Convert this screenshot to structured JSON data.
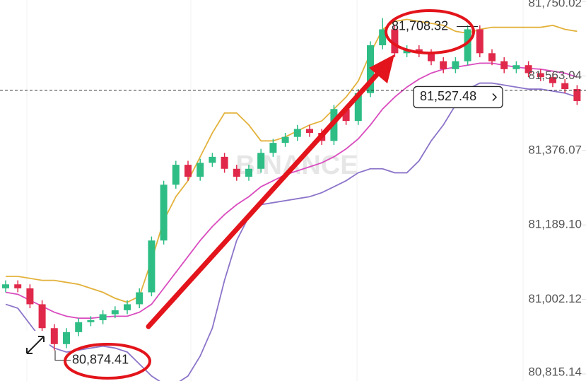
{
  "chart_data": {
    "type": "candlestick",
    "watermark": "BINANCE",
    "ylim": [
      80797.4,
      81753.6
    ],
    "yticks": [
      {
        "value": 80815.14,
        "label": "80,815.14"
      },
      {
        "value": 81002.12,
        "label": "81,002.12"
      },
      {
        "value": 81189.1,
        "label": "81,189.10"
      },
      {
        "value": 81376.07,
        "label": "81,376.07"
      },
      {
        "value": 81563.04,
        "label": "81,563.04"
      },
      {
        "value": 81750.02,
        "label": "81,750.02"
      }
    ],
    "up_color": "#2ebd85",
    "down_color": "#e0294a",
    "open": [
      81030,
      81040,
      81030,
      80990,
      80930,
      80890,
      80920,
      80945,
      80950,
      80965,
      80975,
      80990,
      81020,
      81150,
      81290,
      81340,
      81310,
      81345,
      81360,
      81330,
      81310,
      81330,
      81370,
      81395,
      81410,
      81430,
      81420,
      81400,
      81480,
      81450,
      81520,
      81640,
      81680,
      81620,
      81630,
      81620,
      81600,
      81580,
      81600,
      81680,
      81620,
      81600,
      81580,
      81590,
      81570,
      81560,
      81545,
      81530
    ],
    "high": [
      81050,
      81050,
      81040,
      81000,
      80940,
      80930,
      80955,
      80960,
      80975,
      80985,
      81000,
      81030,
      81160,
      81300,
      81350,
      81350,
      81355,
      81370,
      81370,
      81340,
      81340,
      81380,
      81405,
      81420,
      81440,
      81440,
      81430,
      81490,
      81490,
      81530,
      81650,
      81708.32,
      81690,
      81640,
      81640,
      81630,
      81610,
      81610,
      81690,
      81690,
      81630,
      81610,
      81600,
      81600,
      81580,
      81570,
      81555,
      81540
    ],
    "low": [
      81020,
      81020,
      80980,
      80920,
      80874.41,
      80880,
      80910,
      80935,
      80940,
      80955,
      80965,
      80980,
      81010,
      81140,
      81280,
      81300,
      81300,
      81335,
      81320,
      81300,
      81300,
      81320,
      81360,
      81385,
      81400,
      81410,
      81390,
      81390,
      81440,
      81440,
      81510,
      81630,
      81610,
      81610,
      81610,
      81590,
      81570,
      81570,
      81590,
      81610,
      81590,
      81570,
      81570,
      81560,
      81550,
      81535,
      81520,
      81490
    ],
    "close": [
      81040,
      81030,
      80990,
      80930,
      80890,
      80920,
      80945,
      80950,
      80965,
      80975,
      80990,
      81020,
      81150,
      81290,
      81340,
      81310,
      81345,
      81360,
      81330,
      81310,
      81330,
      81370,
      81395,
      81410,
      81430,
      81420,
      81400,
      81480,
      81450,
      81520,
      81640,
      81680,
      81620,
      81630,
      81620,
      81600,
      81580,
      81600,
      81680,
      81620,
      81600,
      81580,
      81590,
      81570,
      81560,
      81545,
      81530,
      81500
    ],
    "bands": [
      {
        "color": "#e3b23c",
        "values": [
          81060,
          81060,
          81055,
          81050,
          81050,
          81045,
          81040,
          81030,
          81020,
          81005,
          80995,
          81010,
          81100,
          81200,
          81260,
          81300,
          81360,
          81420,
          81470,
          81470,
          81440,
          81400,
          81400,
          81410,
          81425,
          81440,
          81450,
          81480,
          81510,
          81550,
          81620,
          81680,
          81700,
          81705,
          81700,
          81695,
          81690,
          81675,
          81670,
          81680,
          81685,
          81685,
          81685,
          81685,
          81685,
          81690,
          81680,
          81675
        ]
      },
      {
        "color": "#d94cbf",
        "values": [
          81020,
          81015,
          81000,
          80985,
          80970,
          80960,
          80955,
          80955,
          80958,
          80960,
          80960,
          80970,
          80990,
          81030,
          81070,
          81110,
          81150,
          81185,
          81215,
          81240,
          81260,
          81285,
          81300,
          81315,
          81325,
          81335,
          81345,
          81360,
          81380,
          81405,
          81440,
          81480,
          81510,
          81535,
          81555,
          81570,
          81580,
          81585,
          81590,
          81595,
          81595,
          81590,
          81585,
          81582,
          81580,
          81575,
          81570,
          81560
        ]
      },
      {
        "color": "#8c74c9",
        "values": [
          80990,
          80980,
          80940,
          80900,
          80880,
          80870,
          80875,
          80880,
          80885,
          80880,
          80870,
          80840,
          80810,
          80790,
          80790,
          80810,
          80860,
          80930,
          81050,
          81150,
          81210,
          81240,
          81245,
          81250,
          81255,
          81260,
          81270,
          81285,
          81300,
          81320,
          81330,
          81330,
          81320,
          81320,
          81350,
          81400,
          81440,
          81490,
          81530,
          81545,
          81545,
          81540,
          81535,
          81530,
          81530,
          81525,
          81520,
          81510
        ]
      }
    ],
    "annotations": [
      {
        "value": 81708.32,
        "label": "81,708.32"
      },
      {
        "value": 80874.41,
        "label": "80,874.41"
      },
      {
        "value": 81527.48,
        "label": "81,527.48"
      }
    ]
  }
}
